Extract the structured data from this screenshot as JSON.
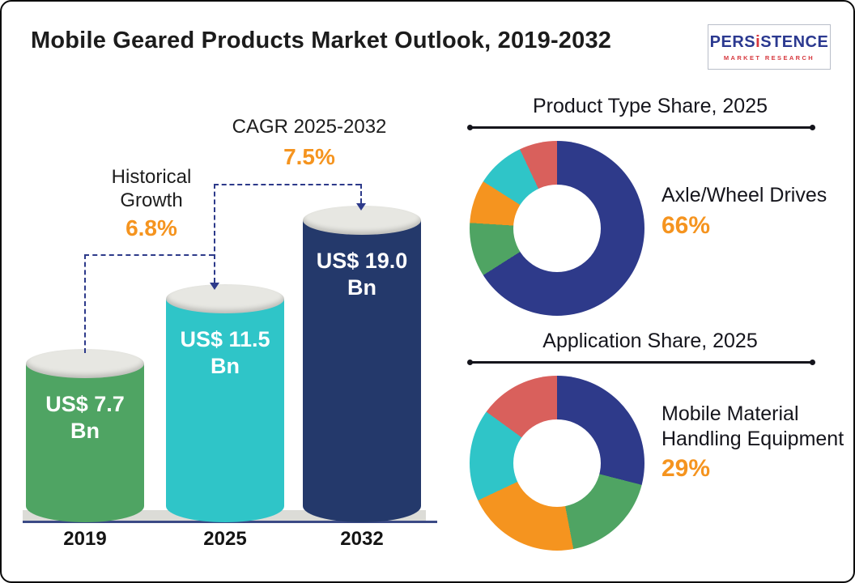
{
  "header": {
    "title": "Mobile Geared Products Market Outlook, 2019-2032",
    "logo": {
      "brand_part1": "PERS",
      "brand_part2": "i",
      "brand_part3": "STENCE",
      "subtitle": "MARKET RESEARCH"
    }
  },
  "colors": {
    "orange": "#F5941F",
    "bar_green": "#4FA463",
    "bar_teal": "#2FC5C8",
    "bar_navy": "#24396B",
    "donut_navy": "#2E3A8A",
    "donut_green": "#4FA463",
    "donut_orange": "#F5941F",
    "donut_teal": "#2FC5C8",
    "donut_red": "#D9605C",
    "dashed_line": "#2D3A8A"
  },
  "chart_data": [
    {
      "type": "bar",
      "categories": [
        "2019",
        "2025",
        "2032"
      ],
      "values": [
        7.7,
        11.5,
        19.0
      ],
      "unit": "US$ Bn",
      "value_labels": [
        "US$ 7.7 Bn",
        "US$ 11.5 Bn",
        "US$ 19.0 Bn"
      ],
      "bar_colors": [
        "#4FA463",
        "#2FC5C8",
        "#24396B"
      ],
      "annotations": [
        {
          "label": "Historical Growth",
          "value": "6.8%"
        },
        {
          "label": "CAGR 2025-2032",
          "value": "7.5%"
        }
      ],
      "ylim": [
        0,
        19
      ],
      "grid": false
    },
    {
      "type": "donut",
      "title": "Product Type Share, 2025",
      "highlight": {
        "label": "Axle/Wheel Drives",
        "value": "66%"
      },
      "segments": [
        {
          "label": "Axle/Wheel Drives",
          "value": 66,
          "color": "#2E3A8A"
        },
        {
          "label": "",
          "value": 10,
          "color": "#4FA463"
        },
        {
          "label": "",
          "value": 8,
          "color": "#F5941F"
        },
        {
          "label": "",
          "value": 9,
          "color": "#2FC5C8"
        },
        {
          "label": "",
          "value": 7,
          "color": "#D9605C"
        }
      ],
      "legend_position": "none"
    },
    {
      "type": "donut",
      "title": "Application Share, 2025",
      "highlight": {
        "label": "Mobile Material Handling Equipment",
        "value": "29%"
      },
      "segments": [
        {
          "label": "Mobile Material Handling Equipment",
          "value": 29,
          "color": "#2E3A8A"
        },
        {
          "label": "",
          "value": 18,
          "color": "#4FA463"
        },
        {
          "label": "",
          "value": 21,
          "color": "#F5941F"
        },
        {
          "label": "",
          "value": 17,
          "color": "#2FC5C8"
        },
        {
          "label": "",
          "value": 15,
          "color": "#D9605C"
        }
      ],
      "legend_position": "none"
    }
  ]
}
